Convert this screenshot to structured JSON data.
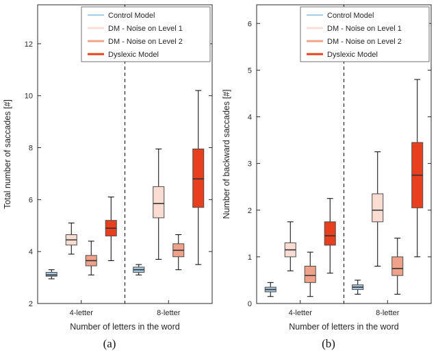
{
  "figure": {
    "sublabels": [
      "(a)",
      "(b)"
    ],
    "background": "#ffffff"
  },
  "style": {
    "axis_color": "#262626",
    "box_edge_color": "#4a4a4a",
    "median_color": "#333333",
    "whisker_color": "#000000",
    "divider_color": "#000000",
    "legend_border_color": "#707070"
  },
  "chart_data": [
    {
      "type": "boxplot",
      "title": "",
      "xlabel": "Number of letters in the word",
      "ylabel": "Total number of saccades [#]",
      "ylim": [
        2,
        13.5
      ],
      "yticks": [
        2,
        4,
        6,
        8,
        10,
        12
      ],
      "categories": [
        "4-letter",
        "8-letter"
      ],
      "grid": false,
      "legend_position": "top-right",
      "divider_between_groups": true,
      "series": [
        {
          "name": "Control Model",
          "color": "#a6cbe3",
          "boxes": [
            {
              "whislo": 2.95,
              "q1": 3.05,
              "med": 3.1,
              "q3": 3.2,
              "whishi": 3.3
            },
            {
              "whislo": 3.1,
              "q1": 3.2,
              "med": 3.3,
              "q3": 3.4,
              "whishi": 3.5
            }
          ]
        },
        {
          "name": "DM - Noise on Level 1",
          "color": "#fadcd2",
          "boxes": [
            {
              "whislo": 3.9,
              "q1": 4.25,
              "med": 4.45,
              "q3": 4.65,
              "whishi": 5.1
            },
            {
              "whislo": 3.7,
              "q1": 5.3,
              "med": 5.85,
              "q3": 6.5,
              "whishi": 7.95
            }
          ]
        },
        {
          "name": "DM - Noise on Level 2",
          "color": "#f0a189",
          "boxes": [
            {
              "whislo": 3.1,
              "q1": 3.45,
              "med": 3.65,
              "q3": 3.85,
              "whishi": 4.4
            },
            {
              "whislo": 3.3,
              "q1": 3.8,
              "med": 4.05,
              "q3": 4.3,
              "whishi": 4.65
            }
          ]
        },
        {
          "name": "Dyslexic Model",
          "color": "#e8401f",
          "boxes": [
            {
              "whislo": 3.65,
              "q1": 4.6,
              "med": 4.9,
              "q3": 5.2,
              "whishi": 6.1
            },
            {
              "whislo": 3.5,
              "q1": 5.7,
              "med": 6.8,
              "q3": 7.95,
              "whishi": 10.2
            }
          ]
        }
      ]
    },
    {
      "type": "boxplot",
      "title": "",
      "xlabel": "Number of letters in the word",
      "ylabel": "Number of backward saccades [#]",
      "ylim": [
        0,
        6.4
      ],
      "yticks": [
        0,
        1,
        2,
        3,
        4,
        5,
        6
      ],
      "categories": [
        "4-letter",
        "8-letter"
      ],
      "grid": false,
      "legend_position": "top-right",
      "divider_between_groups": true,
      "series": [
        {
          "name": "Control Model",
          "color": "#a6cbe3",
          "boxes": [
            {
              "whislo": 0.15,
              "q1": 0.25,
              "med": 0.3,
              "q3": 0.35,
              "whishi": 0.45
            },
            {
              "whislo": 0.2,
              "q1": 0.3,
              "med": 0.35,
              "q3": 0.4,
              "whishi": 0.5
            }
          ]
        },
        {
          "name": "DM - Noise on Level 1",
          "color": "#fadcd2",
          "boxes": [
            {
              "whislo": 0.7,
              "q1": 1.0,
              "med": 1.15,
              "q3": 1.3,
              "whishi": 1.75
            },
            {
              "whislo": 0.8,
              "q1": 1.75,
              "med": 2.0,
              "q3": 2.35,
              "whishi": 3.25
            }
          ]
        },
        {
          "name": "DM - Noise on Level 2",
          "color": "#f0a189",
          "boxes": [
            {
              "whislo": 0.15,
              "q1": 0.45,
              "med": 0.6,
              "q3": 0.8,
              "whishi": 1.1
            },
            {
              "whislo": 0.2,
              "q1": 0.6,
              "med": 0.75,
              "q3": 1.0,
              "whishi": 1.4
            }
          ]
        },
        {
          "name": "Dyslexic Model",
          "color": "#e8401f",
          "boxes": [
            {
              "whislo": 0.65,
              "q1": 1.25,
              "med": 1.45,
              "q3": 1.75,
              "whishi": 2.25
            },
            {
              "whislo": 1.0,
              "q1": 2.05,
              "med": 2.75,
              "q3": 3.45,
              "whishi": 4.8
            }
          ]
        }
      ]
    }
  ]
}
